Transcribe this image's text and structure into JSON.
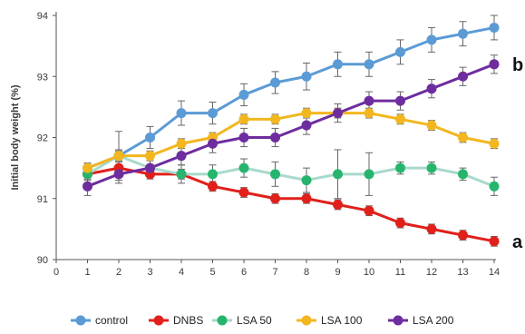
{
  "chart_data": {
    "type": "line",
    "title": "",
    "xlabel": "",
    "ylabel": "Initial body weight (%)",
    "x": [
      1,
      2,
      3,
      4,
      5,
      6,
      7,
      8,
      9,
      10,
      11,
      12,
      13,
      14
    ],
    "xlim": [
      0,
      14
    ],
    "ylim": [
      90,
      94
    ],
    "x_ticks": [
      "0",
      "1",
      "2",
      "3",
      "4",
      "5",
      "6",
      "7",
      "8",
      "9",
      "10",
      "11",
      "12",
      "13",
      "14"
    ],
    "y_ticks": [
      "90",
      "91",
      "92",
      "93",
      "94"
    ],
    "grid": false,
    "legend_position": "bottom",
    "series": [
      {
        "name": "control",
        "color": "#5b9bd5",
        "values": [
          91.5,
          91.7,
          92.0,
          92.4,
          92.4,
          92.7,
          92.9,
          93.0,
          93.2,
          93.2,
          93.4,
          93.6,
          93.7,
          93.8
        ],
        "errors": [
          0.08,
          0.1,
          0.18,
          0.2,
          0.18,
          0.18,
          0.18,
          0.22,
          0.2,
          0.2,
          0.2,
          0.2,
          0.2,
          0.2
        ]
      },
      {
        "name": "DNBS",
        "color": "#e0201b",
        "values": [
          91.4,
          91.5,
          91.4,
          91.4,
          91.2,
          91.1,
          91.0,
          91.0,
          90.9,
          90.8,
          90.6,
          90.5,
          90.4,
          90.3
        ],
        "errors": [
          0.08,
          0.1,
          0.08,
          0.08,
          0.08,
          0.08,
          0.08,
          0.08,
          0.08,
          0.08,
          0.08,
          0.08,
          0.08,
          0.08
        ]
      },
      {
        "name": "LSA 50",
        "color": "#27b56e",
        "line_color": "#a9d9cc",
        "values": [
          91.4,
          91.7,
          91.5,
          91.4,
          91.4,
          91.5,
          91.4,
          91.3,
          91.4,
          91.4,
          91.5,
          91.5,
          91.4,
          91.2
        ],
        "errors": [
          0.1,
          0.4,
          0.15,
          0.15,
          0.15,
          0.15,
          0.2,
          0.2,
          0.4,
          0.35,
          0.1,
          0.1,
          0.1,
          0.15
        ]
      },
      {
        "name": "LSA 100",
        "color": "#f2b71f",
        "values": [
          91.5,
          91.7,
          91.7,
          91.9,
          92.0,
          92.3,
          92.3,
          92.4,
          92.4,
          92.4,
          92.3,
          92.2,
          92.0,
          91.9
        ],
        "errors": [
          0.08,
          0.08,
          0.08,
          0.08,
          0.08,
          0.08,
          0.08,
          0.08,
          0.08,
          0.08,
          0.08,
          0.08,
          0.08,
          0.08
        ]
      },
      {
        "name": "LSA 200",
        "color": "#6e2d9e",
        "values": [
          91.2,
          91.4,
          91.5,
          91.7,
          91.9,
          92.0,
          92.0,
          92.2,
          92.4,
          92.6,
          92.6,
          92.8,
          93.0,
          93.2
        ],
        "errors": [
          0.15,
          0.15,
          0.15,
          0.15,
          0.15,
          0.15,
          0.15,
          0.15,
          0.15,
          0.15,
          0.15,
          0.15,
          0.15,
          0.15
        ]
      }
    ],
    "annotations": [
      {
        "text": "b",
        "series": "LSA 200"
      },
      {
        "text": "a",
        "series": "DNBS"
      }
    ]
  }
}
